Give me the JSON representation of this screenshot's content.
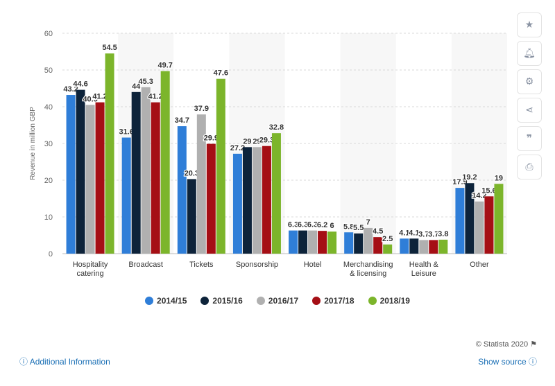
{
  "chart_data": {
    "type": "bar",
    "categories": [
      "Hospitality\ncatering",
      "Broadcast",
      "Tickets",
      "Sponsorship",
      "Hotel",
      "Merchandising\n& licensing",
      "Health &\nLeisure",
      "Other"
    ],
    "series": [
      {
        "name": "2014/15",
        "color": "#2f7ed8",
        "values": [
          43.2,
          31.6,
          34.7,
          27.2,
          6.3,
          5.8,
          4.1,
          17.9
        ],
        "labels": [
          "43.2",
          "31.6",
          "34.7",
          "27.2",
          "6.3",
          "5.8",
          "4.1",
          "17.9"
        ]
      },
      {
        "name": "2015/16",
        "color": "#0d233a",
        "values": [
          44.6,
          44,
          20.3,
          29,
          6.3,
          5.5,
          4.1,
          19.2
        ],
        "labels": [
          "44.6",
          "44",
          "20.3",
          "29",
          "6.3",
          "5.5",
          "4.1",
          "19.2"
        ]
      },
      {
        "name": "2016/17",
        "color": "#b0b0b0",
        "values": [
          40.5,
          45.3,
          37.9,
          29,
          6.3,
          7,
          3.7,
          14.2
        ],
        "labels": [
          "40.5",
          "45.3",
          "37.9",
          "29",
          "6.3",
          "7",
          "3.7",
          "14.2"
        ]
      },
      {
        "name": "2017/18",
        "color": "#a50f15",
        "values": [
          41.2,
          41.2,
          29.9,
          29.3,
          6.2,
          4.5,
          3.7,
          15.6
        ],
        "labels": [
          "41.2",
          "41.2",
          "29.9",
          "29.3",
          "6.2",
          "4.5",
          "3.7",
          "15.6"
        ]
      },
      {
        "name": "2018/19",
        "color": "#7cb52b",
        "values": [
          54.5,
          49.7,
          47.6,
          32.8,
          6,
          2.5,
          3.8,
          19
        ],
        "labels": [
          "54.5",
          "49.7",
          "47.6",
          "32.8",
          "6",
          "2.5",
          "3.8",
          "19"
        ]
      }
    ],
    "ylabel": "Revenue in million GBP",
    "xlabel": "",
    "ylim": [
      0,
      60
    ],
    "yticks": [
      0,
      10,
      20,
      30,
      40,
      50,
      60
    ],
    "grid": true,
    "legend_position": "bottom"
  },
  "footer": {
    "credit": "© Statista 2020",
    "additional_info": "Additional Information",
    "show_source": "Show source"
  },
  "sidebar": {
    "icons": [
      "star-icon",
      "bell-icon",
      "gear-icon",
      "share-icon",
      "quote-icon",
      "print-icon"
    ]
  }
}
